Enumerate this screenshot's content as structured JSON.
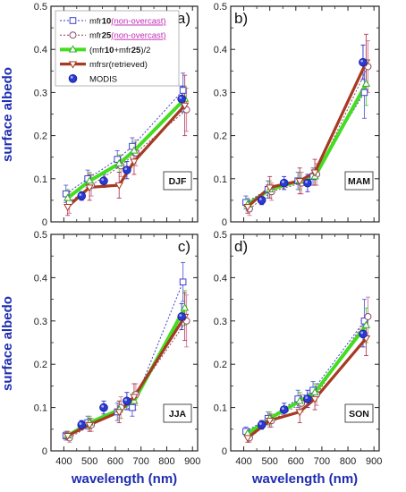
{
  "chart_data": {
    "type": "line",
    "ylabel": "surface albedo",
    "xlabel": "wavelength (nm)",
    "xlim": [
      350,
      920
    ],
    "ylim": [
      0,
      0.5
    ],
    "xticks": [
      400,
      500,
      600,
      700,
      800,
      900
    ],
    "yticks": [
      0,
      0.1,
      0.2,
      0.3,
      0.4,
      0.5
    ],
    "legend": {
      "placement": "top-left of panel a",
      "entries": [
        {
          "key": "mfr10",
          "prefix": "mfr",
          "bold": "10",
          "suffix": "(non-overcast)",
          "color": "#3333cc",
          "style": "dotted line, open square markers"
        },
        {
          "key": "mfr25",
          "prefix": "mfr",
          "bold": "25",
          "suffix": "(non-overcast)",
          "color": "#8a3a5a",
          "style": "dotted line, open circle markers"
        },
        {
          "key": "avg",
          "text_parts": [
            "(mfr",
            "10",
            "+mfr",
            "25",
            ")/2"
          ],
          "color": "#44dd22",
          "style": "thick solid line, open triangle markers"
        },
        {
          "key": "mfrsr",
          "text": "mfrsr(retrieved)",
          "color": "#a63a22",
          "style": "thick solid line, open triangle-down markers"
        },
        {
          "key": "modis",
          "text": "MODIS",
          "color": "#2222cc",
          "style": "filled circle markers"
        }
      ]
    },
    "panels": [
      {
        "letter": "a)",
        "season": "DJF",
        "series": [
          {
            "key": "mfr10",
            "x": [
              415,
              500,
              615,
              673,
              870
            ],
            "y": [
              0.065,
              0.1,
              0.145,
              0.175,
              0.305
            ],
            "err": [
              0.02,
              0.02,
              0.02,
              0.02,
              0.04
            ]
          },
          {
            "key": "mfr25",
            "x": [
              415,
              500,
              615,
              673,
              870
            ],
            "y": [
              0.045,
              0.085,
              0.13,
              0.16,
              0.26
            ],
            "err": [
              0.025,
              0.025,
              0.025,
              0.03,
              0.05
            ]
          },
          {
            "key": "avg",
            "x": [
              415,
              500,
              615,
              673,
              870
            ],
            "y": [
              0.055,
              0.095,
              0.135,
              0.165,
              0.285
            ],
            "err": [
              0.02,
              0.02,
              0.02,
              0.02,
              0.03
            ]
          },
          {
            "key": "mfrsr",
            "x": [
              415,
              500,
              615,
              673,
              870
            ],
            "y": [
              0.035,
              0.08,
              0.085,
              0.14,
              0.27
            ],
            "err": [
              0.02,
              0.03,
              0.03,
              0.03,
              0.07
            ]
          },
          {
            "key": "modis",
            "x": [
              469,
              555,
              645,
              858
            ],
            "y": [
              0.06,
              0.095,
              0.12,
              0.285
            ],
            "err": [
              0.01,
              0.015,
              0.02,
              0.03
            ]
          }
        ]
      },
      {
        "letter": "b)",
        "season": "MAM",
        "series": [
          {
            "key": "mfr10",
            "x": [
              415,
              500,
              615,
              673,
              870
            ],
            "y": [
              0.045,
              0.075,
              0.095,
              0.105,
              0.3
            ],
            "err": [
              0.015,
              0.02,
              0.02,
              0.02,
              0.06
            ]
          },
          {
            "key": "mfr25",
            "x": [
              415,
              500,
              615,
              673,
              870
            ],
            "y": [
              0.03,
              0.07,
              0.09,
              0.11,
              0.36
            ],
            "err": [
              0.015,
              0.02,
              0.025,
              0.025,
              0.06
            ]
          },
          {
            "key": "avg",
            "x": [
              415,
              500,
              615,
              673,
              870
            ],
            "y": [
              0.04,
              0.075,
              0.095,
              0.105,
              0.32
            ],
            "err": [
              0.015,
              0.02,
              0.02,
              0.02,
              0.05
            ]
          },
          {
            "key": "mfrsr",
            "x": [
              415,
              500,
              615,
              673,
              870
            ],
            "y": [
              0.035,
              0.08,
              0.095,
              0.115,
              0.37
            ],
            "err": [
              0.015,
              0.025,
              0.03,
              0.03,
              0.065
            ]
          },
          {
            "key": "modis",
            "x": [
              469,
              555,
              645,
              858
            ],
            "y": [
              0.05,
              0.09,
              0.09,
              0.37
            ],
            "err": [
              0.01,
              0.015,
              0.02,
              0.04
            ]
          }
        ]
      },
      {
        "letter": "c)",
        "season": "JJA",
        "series": [
          {
            "key": "mfr10",
            "x": [
              415,
              500,
              615,
              673,
              870
            ],
            "y": [
              0.035,
              0.065,
              0.09,
              0.1,
              0.39
            ],
            "err": [
              0.01,
              0.015,
              0.02,
              0.02,
              0.045
            ]
          },
          {
            "key": "mfr25",
            "x": [
              415,
              500,
              615,
              673,
              870
            ],
            "y": [
              0.03,
              0.06,
              0.1,
              0.13,
              0.3
            ],
            "err": [
              0.01,
              0.015,
              0.025,
              0.025,
              0.06
            ]
          },
          {
            "key": "avg",
            "x": [
              415,
              500,
              615,
              673,
              870
            ],
            "y": [
              0.035,
              0.065,
              0.095,
              0.115,
              0.33
            ],
            "err": [
              0.01,
              0.015,
              0.02,
              0.02,
              0.04
            ]
          },
          {
            "key": "mfrsr",
            "x": [
              415,
              500,
              615,
              673,
              870
            ],
            "y": [
              0.035,
              0.06,
              0.09,
              0.125,
              0.31
            ],
            "err": [
              0.01,
              0.015,
              0.025,
              0.03,
              0.055
            ]
          },
          {
            "key": "modis",
            "x": [
              469,
              555,
              645,
              858
            ],
            "y": [
              0.06,
              0.1,
              0.115,
              0.31
            ],
            "err": [
              0.01,
              0.015,
              0.02,
              0.03
            ]
          }
        ]
      },
      {
        "letter": "d)",
        "season": "SON",
        "series": [
          {
            "key": "mfr10",
            "x": [
              415,
              500,
              615,
              673,
              870
            ],
            "y": [
              0.045,
              0.075,
              0.12,
              0.14,
              0.3
            ],
            "err": [
              0.01,
              0.015,
              0.02,
              0.02,
              0.05
            ]
          },
          {
            "key": "mfr25",
            "x": [
              415,
              500,
              615,
              673,
              870
            ],
            "y": [
              0.03,
              0.07,
              0.11,
              0.13,
              0.31
            ],
            "err": [
              0.01,
              0.015,
              0.02,
              0.025,
              0.045
            ]
          },
          {
            "key": "avg",
            "x": [
              415,
              500,
              615,
              673,
              870
            ],
            "y": [
              0.04,
              0.075,
              0.115,
              0.135,
              0.29
            ],
            "err": [
              0.01,
              0.015,
              0.02,
              0.02,
              0.04
            ]
          },
          {
            "key": "mfrsr",
            "x": [
              415,
              500,
              615,
              673,
              870
            ],
            "y": [
              0.03,
              0.07,
              0.09,
              0.12,
              0.26
            ],
            "err": [
              0.01,
              0.015,
              0.025,
              0.025,
              0.04
            ]
          },
          {
            "key": "modis",
            "x": [
              469,
              555,
              645,
              858
            ],
            "y": [
              0.06,
              0.095,
              0.12,
              0.27
            ],
            "err": [
              0.01,
              0.015,
              0.02,
              0.03
            ]
          }
        ]
      }
    ]
  }
}
